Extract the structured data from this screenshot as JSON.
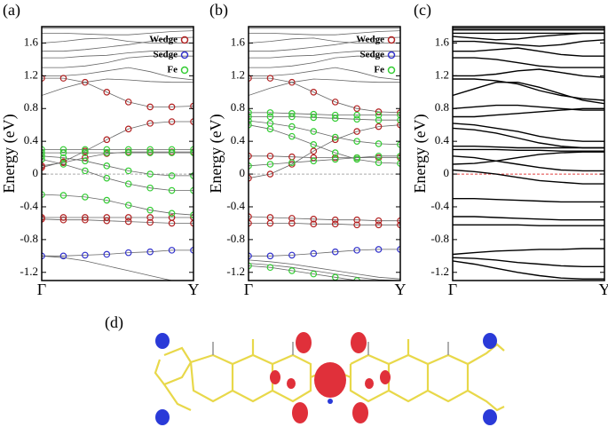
{
  "chart_data": [
    {
      "type": "band",
      "panel_label": "(a)",
      "ylabel": "Energy (eV)",
      "categories": [
        "Γ",
        null,
        null,
        null,
        null,
        null,
        null,
        "Y"
      ],
      "ylim": [
        -1.3,
        1.8
      ],
      "yticks": [
        -1.2,
        -0.8,
        -0.4,
        0,
        0.4,
        0.8,
        1.2,
        1.6
      ],
      "band_color": "#666666",
      "fermi_line_color": "#aaaaaa",
      "legend": "upper right",
      "series": [
        {
          "values": [
            1.78,
            1.78,
            1.78,
            1.78,
            1.78,
            1.78,
            1.78,
            1.78
          ]
        },
        {
          "values": [
            1.72,
            1.72,
            1.71,
            1.7,
            1.7,
            1.72,
            1.74,
            1.75
          ]
        },
        {
          "values": [
            1.6,
            1.62,
            1.65,
            1.66,
            1.62,
            1.6,
            1.6,
            1.6
          ]
        },
        {
          "values": [
            1.5,
            1.5,
            1.52,
            1.55,
            1.58,
            1.62,
            1.66,
            1.67
          ]
        },
        {
          "values": [
            1.42,
            1.42,
            1.44,
            1.45,
            1.48,
            1.5,
            1.5,
            1.5
          ]
        },
        {
          "values": [
            1.3,
            1.3,
            1.32,
            1.36,
            1.42,
            1.44,
            1.44,
            1.44
          ]
        },
        {
          "values": [
            1.2,
            1.2,
            1.22,
            1.26,
            1.3,
            1.25,
            1.18,
            1.15
          ]
        },
        {
          "values": [
            0.96,
            1.05,
            1.12,
            1.16,
            1.15,
            1.13,
            1.12,
            1.12
          ]
        },
        {
          "values": [
            -1.0,
            -1.02,
            -1.06,
            -1.12,
            -1.18,
            -1.24,
            -1.3,
            null
          ]
        }
      ],
      "projections": [
        {
          "name": "Wedge",
          "color": "#b22222",
          "bands": [
            [
              1.17,
              1.17,
              1.12,
              1.0,
              0.88,
              0.82,
              0.82,
              0.83
            ],
            [
              0.08,
              0.15,
              0.28,
              0.42,
              0.55,
              0.62,
              0.64,
              0.64
            ],
            [
              0.1,
              0.14,
              0.2,
              0.25,
              0.27,
              0.27,
              0.27,
              0.27
            ],
            [
              -0.55,
              -0.56,
              -0.56,
              -0.57,
              -0.58,
              -0.59,
              -0.6,
              -0.6
            ],
            [
              -0.53,
              -0.53,
              -0.53,
              -0.53,
              -0.53,
              -0.53,
              -0.53,
              -0.53
            ]
          ]
        },
        {
          "name": "Sedge",
          "color": "#3333cc",
          "bands": [
            [
              -1.0,
              -1.0,
              -0.99,
              -0.98,
              -0.96,
              -0.95,
              -0.93,
              -0.93
            ]
          ]
        },
        {
          "name": "Fe",
          "color": "#33cc33",
          "bands": [
            [
              0.3,
              0.3,
              0.3,
              0.3,
              0.3,
              0.3,
              0.3,
              0.3
            ],
            [
              0.26,
              0.26,
              0.26,
              0.26,
              0.26,
              0.26,
              0.26,
              0.26
            ],
            [
              0.22,
              0.2,
              0.16,
              0.1,
              0.04,
              0.0,
              -0.02,
              -0.02
            ],
            [
              0.18,
              0.12,
              0.04,
              -0.05,
              -0.12,
              -0.17,
              -0.2,
              -0.2
            ],
            [
              -0.25,
              -0.26,
              -0.28,
              -0.32,
              -0.38,
              -0.44,
              -0.48,
              -0.5
            ]
          ]
        }
      ]
    },
    {
      "type": "band",
      "panel_label": "(b)",
      "ylabel": "Energy (eV)",
      "categories": [
        "Γ",
        null,
        null,
        null,
        null,
        null,
        null,
        "Y"
      ],
      "ylim": [
        -1.3,
        1.8
      ],
      "yticks": [
        -1.2,
        -0.8,
        -0.4,
        0,
        0.4,
        0.8,
        1.2,
        1.6
      ],
      "band_color": "#666666",
      "fermi_line_color": "#aaaaaa",
      "legend": "upper right",
      "series": [
        {
          "values": [
            1.78,
            1.78,
            1.78,
            1.78,
            1.78,
            1.78,
            1.78,
            1.78
          ]
        },
        {
          "values": [
            1.72,
            1.72,
            1.71,
            1.7,
            1.7,
            1.72,
            1.74,
            1.75
          ]
        },
        {
          "values": [
            1.6,
            1.62,
            1.65,
            1.66,
            1.62,
            1.6,
            1.6,
            1.6
          ]
        },
        {
          "values": [
            1.5,
            1.5,
            1.52,
            1.55,
            1.58,
            1.62,
            1.66,
            1.67
          ]
        },
        {
          "values": [
            1.42,
            1.42,
            1.44,
            1.45,
            1.48,
            1.5,
            1.5,
            1.5
          ]
        },
        {
          "values": [
            1.3,
            1.3,
            1.32,
            1.36,
            1.42,
            1.44,
            1.44,
            1.44
          ]
        },
        {
          "values": [
            1.2,
            1.2,
            1.22,
            1.26,
            1.3,
            1.25,
            1.18,
            1.15
          ]
        },
        {
          "values": [
            0.96,
            1.05,
            1.12,
            1.16,
            1.15,
            1.13,
            1.12,
            1.12
          ]
        },
        {
          "values": [
            -1.05,
            -1.07,
            -1.1,
            -1.14,
            -1.18,
            -1.22,
            -1.26,
            -1.28
          ]
        },
        {
          "values": [
            -1.09,
            -1.11,
            -1.14,
            -1.18,
            -1.22,
            -1.26,
            -1.29,
            -1.3
          ]
        }
      ],
      "projections": [
        {
          "name": "Wedge",
          "color": "#b22222",
          "bands": [
            [
              1.17,
              1.17,
              1.12,
              1.0,
              0.88,
              0.8,
              0.76,
              0.75
            ],
            [
              -0.05,
              0.0,
              0.12,
              0.28,
              0.42,
              0.52,
              0.58,
              0.6
            ],
            [
              0.22,
              0.22,
              0.21,
              0.2,
              0.2,
              0.2,
              0.2,
              0.2
            ],
            [
              -0.52,
              -0.53,
              -0.54,
              -0.55,
              -0.56,
              -0.56,
              -0.57,
              -0.57
            ],
            [
              -0.6,
              -0.6,
              -0.6,
              -0.61,
              -0.61,
              -0.62,
              -0.62,
              -0.62
            ]
          ]
        },
        {
          "name": "Sedge",
          "color": "#3333cc",
          "bands": [
            [
              -1.0,
              -1.0,
              -0.99,
              -0.97,
              -0.95,
              -0.93,
              -0.92,
              -0.92
            ]
          ]
        },
        {
          "name": "Fe",
          "color": "#33cc33",
          "bands": [
            [
              0.75,
              0.75,
              0.74,
              0.73,
              0.72,
              0.72,
              0.72,
              0.72
            ],
            [
              0.7,
              0.7,
              0.7,
              0.69,
              0.68,
              0.67,
              0.66,
              0.66
            ],
            [
              0.65,
              0.62,
              0.58,
              0.52,
              0.45,
              0.4,
              0.37,
              0.36
            ],
            [
              0.6,
              0.55,
              0.46,
              0.36,
              0.26,
              0.18,
              0.14,
              0.13
            ],
            [
              0.1,
              0.12,
              0.14,
              0.16,
              0.18,
              0.2,
              0.22,
              0.22
            ],
            [
              -1.12,
              -1.14,
              -1.18,
              -1.22,
              -1.26,
              -1.3,
              null,
              null
            ]
          ]
        }
      ]
    },
    {
      "type": "band",
      "panel_label": "(c)",
      "ylabel": "Energy (eV)",
      "categories": [
        "Γ",
        null,
        null,
        null,
        null,
        null,
        null,
        "Y"
      ],
      "ylim": [
        -1.3,
        1.8
      ],
      "yticks": [
        -1.2,
        -0.8,
        -0.4,
        0,
        0.4,
        0.8,
        1.2,
        1.6
      ],
      "band_color": "#000000",
      "fermi_line_color": "#e04040",
      "series": [
        {
          "values": [
            1.78,
            1.78,
            1.78,
            1.78,
            1.78,
            1.78,
            1.78,
            1.78
          ]
        },
        {
          "values": [
            1.76,
            1.76,
            1.76,
            1.76,
            1.76,
            1.76,
            1.76,
            1.76
          ]
        },
        {
          "values": [
            1.72,
            1.72,
            1.72,
            1.72,
            1.72,
            1.72,
            1.72,
            1.72
          ]
        },
        {
          "values": [
            1.68,
            1.66,
            1.64,
            1.65,
            1.68,
            1.7,
            1.72,
            1.72
          ]
        },
        {
          "values": [
            1.62,
            1.62,
            1.6,
            1.58,
            1.56,
            1.58,
            1.62,
            1.64
          ]
        },
        {
          "values": [
            1.5,
            1.5,
            1.52,
            1.54,
            1.5,
            1.46,
            1.44,
            1.44
          ]
        },
        {
          "values": [
            1.42,
            1.42,
            1.4,
            1.36,
            1.32,
            1.3,
            1.3,
            1.3
          ]
        },
        {
          "values": [
            1.2,
            1.2,
            1.22,
            1.26,
            1.28,
            1.24,
            1.2,
            1.18
          ]
        },
        {
          "values": [
            1.16,
            1.16,
            1.14,
            1.1,
            1.02,
            0.96,
            0.92,
            0.9
          ]
        },
        {
          "values": [
            0.96,
            1.04,
            1.12,
            1.12,
            1.06,
            0.98,
            0.9,
            0.86
          ]
        },
        {
          "values": [
            0.8,
            0.82,
            0.84,
            0.84,
            0.82,
            0.8,
            0.78,
            0.78
          ]
        },
        {
          "values": [
            0.7,
            0.7,
            0.72,
            0.74,
            0.76,
            0.78,
            0.8,
            0.8
          ]
        },
        {
          "values": [
            0.62,
            0.6,
            0.56,
            0.52,
            0.46,
            0.42,
            0.4,
            0.4
          ]
        },
        {
          "values": [
            0.56,
            0.54,
            0.5,
            0.44,
            0.38,
            0.34,
            0.32,
            0.32
          ]
        },
        {
          "values": [
            0.34,
            0.34,
            0.33,
            0.32,
            0.32,
            0.32,
            0.32,
            0.32
          ]
        },
        {
          "values": [
            0.3,
            0.3,
            0.3,
            0.29,
            0.29,
            0.28,
            0.28,
            0.28
          ]
        },
        {
          "values": [
            0.22,
            0.2,
            0.16,
            0.12,
            0.08,
            0.05,
            0.04,
            0.04
          ]
        },
        {
          "values": [
            0.12,
            0.13,
            0.16,
            0.2,
            0.24,
            0.26,
            0.27,
            0.27
          ]
        },
        {
          "values": [
            0.05,
            0.03,
            0.0,
            -0.04,
            -0.08,
            -0.1,
            -0.12,
            -0.12
          ]
        },
        {
          "values": [
            -0.3,
            -0.3,
            -0.31,
            -0.32,
            -0.33,
            -0.34,
            -0.34,
            -0.34
          ]
        },
        {
          "values": [
            -0.52,
            -0.52,
            -0.53,
            -0.54,
            -0.55,
            -0.56,
            -0.56,
            -0.56
          ]
        },
        {
          "values": [
            -0.62,
            -0.62,
            -0.62,
            -0.62,
            -0.63,
            -0.63,
            -0.63,
            -0.63
          ]
        },
        {
          "values": [
            -0.98,
            -0.96,
            -0.94,
            -0.93,
            -0.92,
            -0.92,
            -0.91,
            -0.91
          ]
        },
        {
          "values": [
            -1.02,
            -1.03,
            -1.05,
            -1.08,
            -1.1,
            -1.12,
            -1.13,
            -1.13
          ]
        },
        {
          "values": [
            -1.06,
            -1.1,
            -1.15,
            -1.2,
            -1.24,
            -1.27,
            -1.28,
            -1.28
          ]
        }
      ]
    }
  ],
  "image_panel": {
    "label": "(d)"
  }
}
